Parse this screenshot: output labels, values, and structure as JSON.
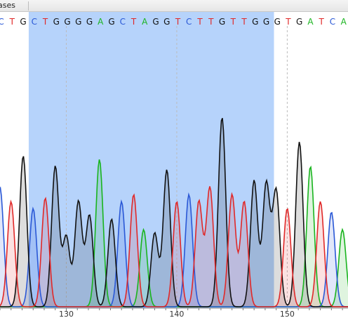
{
  "panel": {
    "header_label": "ases"
  },
  "colors": {
    "A": "#19b41e",
    "C": "#2a58d6",
    "G": "#111111",
    "T": "#e02828",
    "selection": "#b6d3fb",
    "grid": "#bcbcbc"
  },
  "chart_data": {
    "type": "line",
    "base_calls": [
      "C",
      "T",
      "G",
      "C",
      "T",
      "G",
      "G",
      "G",
      "G",
      "A",
      "G",
      "C",
      "T",
      "A",
      "G",
      "G",
      "T",
      "C",
      "T",
      "T",
      "G",
      "T",
      "T",
      "G",
      "G",
      "G",
      "T",
      "G",
      "A",
      "T",
      "C",
      "A"
    ],
    "base_positions": [
      124.1,
      125.1,
      126.1,
      127.1,
      128.1,
      129.1,
      130.1,
      131.1,
      132.1,
      133.1,
      134.1,
      135.1,
      136.1,
      137.1,
      138.1,
      139.1,
      140.1,
      141.1,
      142.1,
      143.1,
      144.1,
      145.1,
      146.1,
      147.1,
      148.1,
      149.1,
      150.1,
      151.1,
      152.1,
      153.1,
      154.1,
      155.1
    ],
    "peak_bases": [
      "C",
      "T",
      "G",
      "C",
      "T",
      "G",
      "G",
      "G",
      "G",
      "A",
      "G",
      "C",
      "T",
      "A",
      "G",
      "G",
      "T",
      "C",
      "T",
      "T",
      "G",
      "T",
      "T",
      "G",
      "G",
      "G",
      "T",
      "G",
      "A",
      "T",
      "C",
      "A"
    ],
    "peak_positions": [
      124.0,
      125.0,
      126.1,
      127.0,
      128.1,
      129.0,
      130.0,
      131.1,
      132.1,
      133.0,
      134.1,
      135.0,
      136.1,
      137.0,
      138.0,
      139.1,
      140.0,
      141.1,
      142.0,
      143.0,
      144.1,
      145.0,
      146.1,
      147.0,
      148.1,
      149.0,
      150.0,
      151.1,
      152.1,
      153.0,
      154.0,
      155.0
    ],
    "peak_heights": [
      170,
      150,
      215,
      140,
      155,
      200,
      100,
      150,
      130,
      210,
      125,
      150,
      160,
      110,
      105,
      195,
      150,
      160,
      150,
      170,
      270,
      160,
      150,
      180,
      175,
      165,
      140,
      235,
      200,
      150,
      135,
      110
    ],
    "x_ticks": [
      130,
      140,
      150
    ],
    "xlim": [
      124,
      155.5
    ],
    "selection_range": [
      126.6,
      148.8
    ]
  }
}
